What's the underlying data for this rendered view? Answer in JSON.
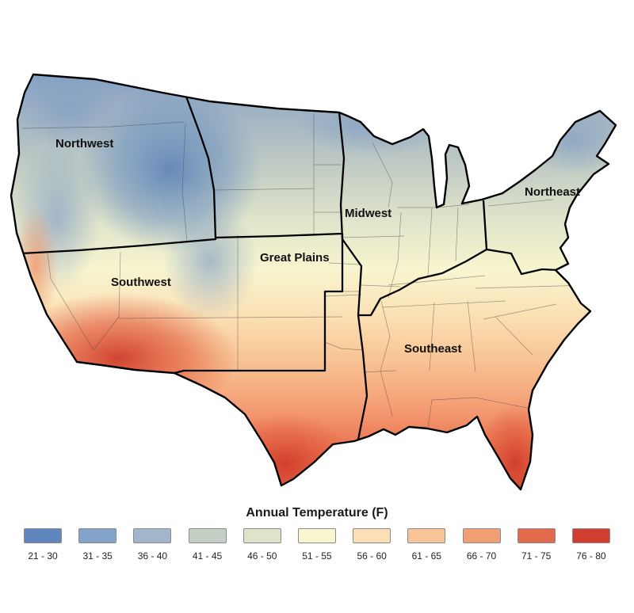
{
  "map": {
    "name": "US annual temperature map",
    "regions": [
      {
        "label": "Northwest"
      },
      {
        "label": "Southwest"
      },
      {
        "label": "Great Plains"
      },
      {
        "label": "Midwest"
      },
      {
        "label": "Northeast"
      },
      {
        "label": "Southeast"
      }
    ]
  },
  "legend": {
    "title": "Annual Temperature (F)",
    "items": [
      {
        "label": "21 - 30",
        "color": "#5f87bd"
      },
      {
        "label": "31 - 35",
        "color": "#84a3cb"
      },
      {
        "label": "36 - 40",
        "color": "#a3b6cb"
      },
      {
        "label": "41 - 45",
        "color": "#c6cfc5"
      },
      {
        "label": "46 - 50",
        "color": "#dfe3cb"
      },
      {
        "label": "51 - 55",
        "color": "#f9f7d0"
      },
      {
        "label": "56 - 60",
        "color": "#fbe0b6"
      },
      {
        "label": "61 - 65",
        "color": "#f9c598"
      },
      {
        "label": "66 - 70",
        "color": "#f39f76"
      },
      {
        "label": "71 - 75",
        "color": "#e16a4c"
      },
      {
        "label": "76 - 80",
        "color": "#d03e30"
      }
    ]
  }
}
